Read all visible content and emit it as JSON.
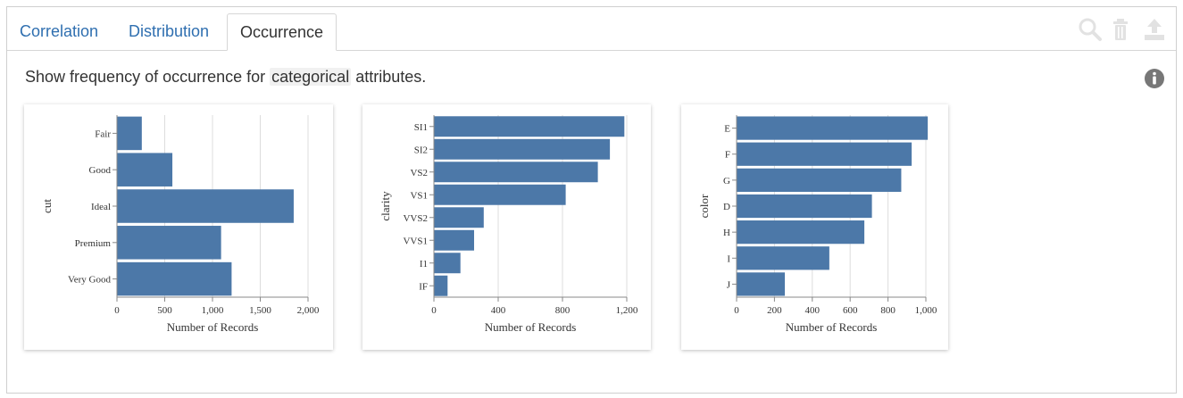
{
  "tabs": [
    {
      "label": "Correlation",
      "active": false
    },
    {
      "label": "Distribution",
      "active": false
    },
    {
      "label": "Occurrence",
      "active": true
    }
  ],
  "toolbar": {
    "icons": [
      "search-icon",
      "trash-icon",
      "upload-icon"
    ]
  },
  "description": {
    "prefix": "Show frequency of occurrence for ",
    "keyword": "categorical",
    "suffix": " attributes."
  },
  "info_icon": "info-icon",
  "colors": {
    "bar": "#4c78a8",
    "tab_link": "#2f6fb0",
    "grid": "#dddddd"
  },
  "chart_data": [
    {
      "type": "bar",
      "orientation": "horizontal",
      "categories": [
        "Fair",
        "Good",
        "Ideal",
        "Premium",
        "Very Good"
      ],
      "values": [
        260,
        580,
        1850,
        1090,
        1200
      ],
      "ylabel": "cut",
      "xlabel": "Number of Records",
      "ticks": [
        0,
        500,
        1000,
        1500,
        2000
      ],
      "tick_labels": [
        "0",
        "500",
        "1,000",
        "1,500",
        "2,000"
      ],
      "xlim": [
        0,
        2000
      ],
      "grid": true
    },
    {
      "type": "bar",
      "orientation": "horizontal",
      "categories": [
        "SI1",
        "SI2",
        "VS2",
        "VS1",
        "VVS2",
        "VVS1",
        "I1",
        "IF"
      ],
      "values": [
        1185,
        1095,
        1020,
        820,
        310,
        250,
        165,
        85
      ],
      "ylabel": "clarity",
      "xlabel": "Number of Records",
      "ticks": [
        0,
        400,
        800,
        1200
      ],
      "tick_labels": [
        "0",
        "400",
        "800",
        "1,200"
      ],
      "xlim": [
        0,
        1200
      ],
      "grid": true
    },
    {
      "type": "bar",
      "orientation": "horizontal",
      "categories": [
        "E",
        "F",
        "G",
        "D",
        "H",
        "I",
        "J"
      ],
      "values": [
        1010,
        925,
        870,
        715,
        675,
        490,
        255
      ],
      "ylabel": "color",
      "xlabel": "Number of Records",
      "ticks": [
        0,
        200,
        400,
        600,
        800,
        1000
      ],
      "tick_labels": [
        "0",
        "200",
        "400",
        "600",
        "800",
        "1,000"
      ],
      "xlim": [
        0,
        1000
      ],
      "grid": true
    }
  ]
}
